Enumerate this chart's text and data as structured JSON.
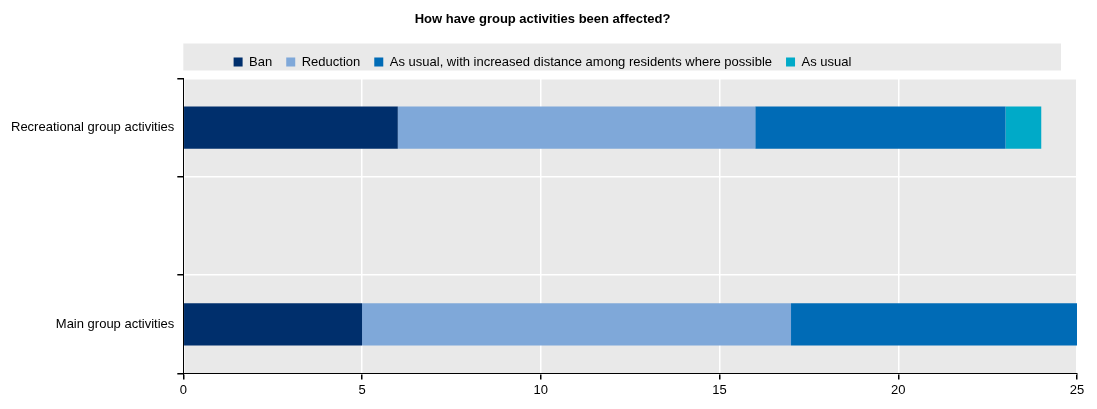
{
  "chart_data": {
    "type": "bar",
    "orientation": "horizontal",
    "stacked": true,
    "title": "How have group activities been affected?",
    "categories": [
      "Recreational group activities",
      null,
      "Main group activities"
    ],
    "series": [
      {
        "name": "Ban",
        "color": "#002f6c",
        "values": [
          6,
          null,
          5
        ]
      },
      {
        "name": "Reduction",
        "color": "#7fa8d9",
        "values": [
          10,
          null,
          12
        ]
      },
      {
        "name": "As usual, with increased distance among residents where possible",
        "color": "#006bb6",
        "values": [
          7,
          null,
          8
        ]
      },
      {
        "name": "As usual",
        "color": "#00aac8",
        "values": [
          1,
          null,
          0
        ]
      }
    ],
    "xlim": [
      0,
      25
    ],
    "xticks": [
      0,
      5,
      10,
      15,
      20,
      25
    ],
    "grid": true,
    "legend": "top"
  }
}
